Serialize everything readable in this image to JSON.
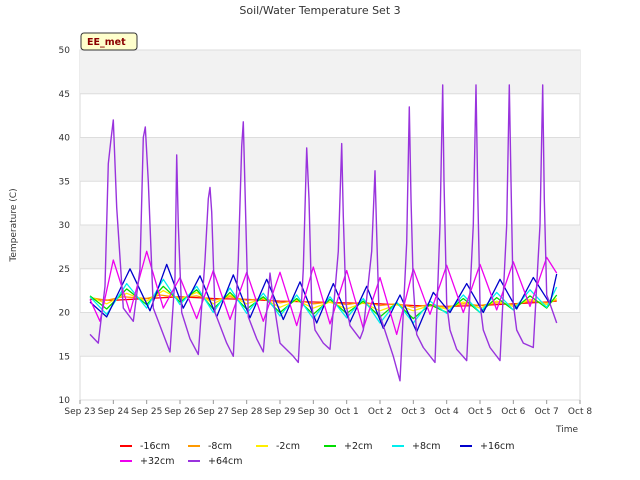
{
  "chart_data": {
    "type": "line",
    "title": "Soil/Water Temperature Set 3",
    "xlabel": "Time",
    "ylabel": "Temperature (C)",
    "badge": "EE_met",
    "ylim": [
      10,
      50
    ],
    "yticks": [
      10,
      15,
      20,
      25,
      30,
      35,
      40,
      45,
      50
    ],
    "xlim": [
      0,
      15
    ],
    "xticks": [
      0,
      1,
      2,
      3,
      4,
      5,
      6,
      7,
      8,
      9,
      10,
      11,
      12,
      13,
      14,
      15
    ],
    "xtick_labels": [
      "Sep 23",
      "Sep 24",
      "Sep 25",
      "Sep 26",
      "Sep 27",
      "Sep 28",
      "Sep 29",
      "Sep 30",
      "Oct 1",
      "Oct 2",
      "Oct 3",
      "Oct 4",
      "Oct 5",
      "Oct 6",
      "Oct 7",
      "Oct 8"
    ],
    "grid": true,
    "legend_position": "bottom",
    "series": [
      {
        "name": "-16cm",
        "color": "#ff0000",
        "x": [
          0.3,
          1,
          2,
          3,
          4,
          5,
          6,
          7,
          8,
          9,
          10,
          11,
          12,
          13,
          14,
          14.3
        ],
        "y": [
          21.5,
          21.4,
          21.6,
          21.8,
          21.6,
          21.5,
          21.3,
          21.2,
          21.1,
          21.0,
          20.8,
          20.7,
          20.8,
          21.0,
          21.2,
          21.3
        ]
      },
      {
        "name": "-8cm",
        "color": "#ff9900",
        "x": [
          0.3,
          0.8,
          1.3,
          2,
          2.4,
          3,
          3.5,
          4,
          4.5,
          5,
          5.5,
          6,
          6.5,
          7,
          7.5,
          8,
          8.5,
          9,
          9.5,
          10,
          10.5,
          11,
          11.5,
          12,
          12.5,
          13,
          13.5,
          14,
          14.3
        ],
        "y": [
          21.7,
          21.4,
          21.8,
          21.6,
          22.0,
          21.7,
          21.9,
          21.4,
          21.8,
          21.4,
          21.6,
          21.1,
          21.4,
          21.0,
          21.2,
          20.9,
          21.2,
          20.8,
          21.0,
          20.6,
          20.9,
          20.6,
          21.0,
          20.8,
          21.1,
          20.9,
          21.3,
          21.1,
          21.4
        ]
      },
      {
        "name": "-2cm",
        "color": "#ffee00",
        "x": [
          0.3,
          0.8,
          1.4,
          2,
          2.5,
          3,
          3.5,
          4,
          4.5,
          5,
          5.5,
          6,
          6.5,
          7,
          7.5,
          8,
          8.5,
          9,
          9.5,
          10,
          10.5,
          11,
          11.5,
          12,
          12.5,
          13,
          13.5,
          14,
          14.3
        ],
        "y": [
          21.8,
          21.0,
          22.2,
          21.3,
          22.5,
          21.5,
          22.3,
          21.0,
          22.0,
          21.0,
          21.6,
          20.6,
          21.4,
          20.5,
          21.2,
          20.4,
          21.1,
          20.2,
          20.9,
          20.2,
          20.8,
          20.4,
          21.2,
          20.5,
          21.3,
          20.7,
          21.5,
          20.9,
          21.6
        ]
      },
      {
        "name": "+2cm",
        "color": "#00dd00",
        "x": [
          0.3,
          0.8,
          1.4,
          2,
          2.5,
          3,
          3.5,
          4,
          4.5,
          5,
          5.5,
          6,
          6.5,
          7,
          7.5,
          8,
          8.5,
          9,
          9.5,
          10,
          10.5,
          11,
          11.5,
          12,
          12.5,
          13,
          13.5,
          14,
          14.3
        ],
        "y": [
          21.9,
          20.4,
          22.7,
          20.9,
          23.0,
          21.2,
          22.6,
          20.4,
          22.3,
          20.4,
          21.8,
          20.0,
          21.6,
          19.8,
          21.5,
          19.9,
          21.3,
          19.5,
          21.1,
          19.3,
          20.9,
          20.0,
          21.6,
          20.0,
          21.7,
          20.3,
          21.9,
          20.5,
          22.0
        ]
      },
      {
        "name": "+8cm",
        "color": "#00eeee",
        "x": [
          0.3,
          0.8,
          1.4,
          2,
          2.5,
          3,
          3.5,
          4,
          4.5,
          5,
          5.5,
          6,
          6.5,
          7,
          7.5,
          8,
          8.5,
          9,
          9.5,
          10,
          10.5,
          11,
          11.5,
          12,
          12.5,
          13,
          13.5,
          14,
          14.3
        ],
        "y": [
          21.8,
          19.8,
          23.3,
          20.5,
          23.8,
          20.9,
          23.0,
          20.0,
          22.8,
          19.9,
          22.2,
          19.6,
          22.0,
          19.3,
          21.8,
          19.4,
          21.6,
          18.8,
          21.2,
          18.8,
          21.3,
          19.9,
          22.0,
          20.0,
          22.3,
          20.3,
          22.6,
          20.6,
          22.9
        ]
      },
      {
        "name": "+16cm",
        "color": "#0000cc",
        "x": [
          0.3,
          0.8,
          1.5,
          2.1,
          2.6,
          3.1,
          3.6,
          4.1,
          4.6,
          5.1,
          5.6,
          6.1,
          6.6,
          7.1,
          7.6,
          8.1,
          8.6,
          9.1,
          9.6,
          10.1,
          10.6,
          11.1,
          11.6,
          12.1,
          12.6,
          13.1,
          13.6,
          14.1,
          14.3
        ],
        "y": [
          21.2,
          19.5,
          25.0,
          20.2,
          25.5,
          20.5,
          24.2,
          19.5,
          24.3,
          19.4,
          23.8,
          19.2,
          23.5,
          18.8,
          23.3,
          18.9,
          23.0,
          18.2,
          22.0,
          17.8,
          22.3,
          20.0,
          23.3,
          20.0,
          23.8,
          20.4,
          24.0,
          21.0,
          24.4
        ]
      },
      {
        "name": "+32cm",
        "color": "#ee00ee",
        "x": [
          0.3,
          0.6,
          1.0,
          1.5,
          2.0,
          2.5,
          3.0,
          3.5,
          4.0,
          4.5,
          5.0,
          5.5,
          6.0,
          6.5,
          7.0,
          7.5,
          8.0,
          8.5,
          9.0,
          9.5,
          10.0,
          10.5,
          11.0,
          11.5,
          12.0,
          12.5,
          13.0,
          13.5,
          14.0,
          14.3
        ],
        "y": [
          21.5,
          19.0,
          26.0,
          20.0,
          27.0,
          20.5,
          24.0,
          19.3,
          24.8,
          19.2,
          24.6,
          19.0,
          24.6,
          18.5,
          25.2,
          18.7,
          24.8,
          18.2,
          24.0,
          17.5,
          25.0,
          19.8,
          25.4,
          20.0,
          25.5,
          20.3,
          25.8,
          20.7,
          26.3,
          24.5
        ]
      },
      {
        "name": "+64cm",
        "color": "#9933dd",
        "x": [
          0.3,
          0.55,
          0.75,
          0.85,
          0.92,
          1.0,
          1.1,
          1.3,
          1.6,
          1.8,
          1.9,
          1.96,
          2.05,
          2.2,
          2.5,
          2.7,
          2.85,
          2.9,
          2.95,
          3.05,
          3.3,
          3.55,
          3.75,
          3.85,
          3.9,
          3.95,
          4.05,
          4.4,
          4.6,
          4.75,
          4.85,
          4.9,
          4.97,
          5.05,
          5.3,
          5.5,
          5.7,
          5.8,
          6.0,
          6.4,
          6.55,
          6.7,
          6.8,
          6.87,
          6.95,
          7.05,
          7.3,
          7.5,
          7.75,
          7.85,
          7.9,
          7.98,
          8.1,
          8.4,
          8.5,
          8.75,
          8.85,
          8.9,
          8.97,
          9.1,
          9.4,
          9.6,
          9.8,
          9.88,
          9.93,
          10.0,
          10.1,
          10.3,
          10.65,
          10.8,
          10.88,
          10.92,
          11.0,
          11.1,
          11.3,
          11.6,
          11.8,
          11.88,
          11.93,
          12.0,
          12.1,
          12.3,
          12.6,
          12.8,
          12.88,
          12.93,
          13.0,
          13.1,
          13.3,
          13.6,
          13.8,
          13.88,
          13.93,
          14.0,
          14.1,
          14.3
        ],
        "y": [
          17.5,
          16.5,
          23.0,
          37.0,
          39.5,
          42.0,
          32.0,
          20.5,
          19.0,
          25.0,
          40.0,
          41.2,
          35.0,
          20.5,
          17.5,
          15.5,
          24.0,
          38.0,
          30.0,
          20.0,
          17.0,
          15.2,
          26.0,
          33.0,
          34.3,
          31.5,
          20.0,
          16.5,
          15.0,
          26.0,
          39.0,
          41.8,
          31.0,
          19.5,
          17.0,
          15.5,
          24.5,
          21.5,
          16.5,
          15.0,
          14.3,
          25.0,
          38.8,
          33.0,
          21.0,
          18.0,
          16.5,
          15.8,
          27.0,
          39.3,
          31.0,
          21.0,
          18.5,
          17.0,
          18.0,
          27.0,
          36.2,
          29.0,
          20.0,
          18.5,
          15.0,
          12.2,
          28.0,
          43.5,
          33.0,
          23.0,
          17.5,
          16.0,
          14.3,
          30.0,
          46.0,
          35.0,
          21.0,
          18.0,
          15.8,
          14.5,
          30.0,
          46.0,
          34.0,
          21.0,
          18.0,
          16.0,
          14.5,
          30.0,
          46.0,
          35.0,
          21.0,
          18.0,
          16.5,
          16.0,
          30.0,
          46.0,
          33.0,
          22.0,
          21.0,
          18.8
        ]
      }
    ]
  }
}
